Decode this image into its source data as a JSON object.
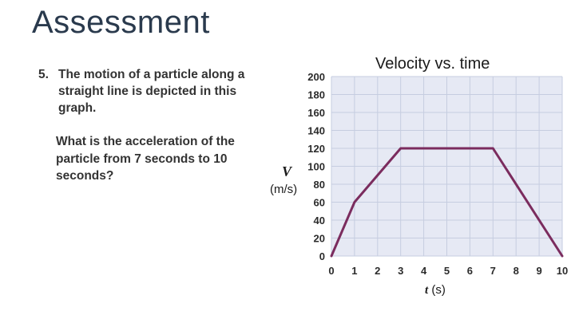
{
  "slide": {
    "title": "Assessment"
  },
  "question": {
    "number": "5.",
    "text": "The motion of a particle along a straight line is depicted in this graph.",
    "prompt": "What is the acceleration of the particle from 7 seconds to 10 seconds?"
  },
  "chart_data": {
    "type": "line",
    "title": "Velocity vs. time",
    "ylabel_symbol": "V",
    "ylabel_unit": "(m/s)",
    "xlabel_symbol": "t",
    "xlabel_unit": " (s)",
    "x_ticks": [
      0,
      1,
      2,
      3,
      4,
      5,
      6,
      7,
      8,
      9,
      10
    ],
    "y_ticks": [
      0,
      20,
      40,
      60,
      80,
      100,
      120,
      140,
      160,
      180,
      200
    ],
    "xlim": [
      0,
      10
    ],
    "ylim": [
      0,
      200
    ],
    "grid": true,
    "series": [
      {
        "x": [
          0,
          1,
          3,
          7,
          10
        ],
        "y": [
          0,
          60,
          120,
          120,
          0
        ]
      }
    ],
    "colors": {
      "line": "#7b2c5e",
      "grid": "#c6cde0",
      "plot_bg": "#e6e9f4"
    }
  }
}
